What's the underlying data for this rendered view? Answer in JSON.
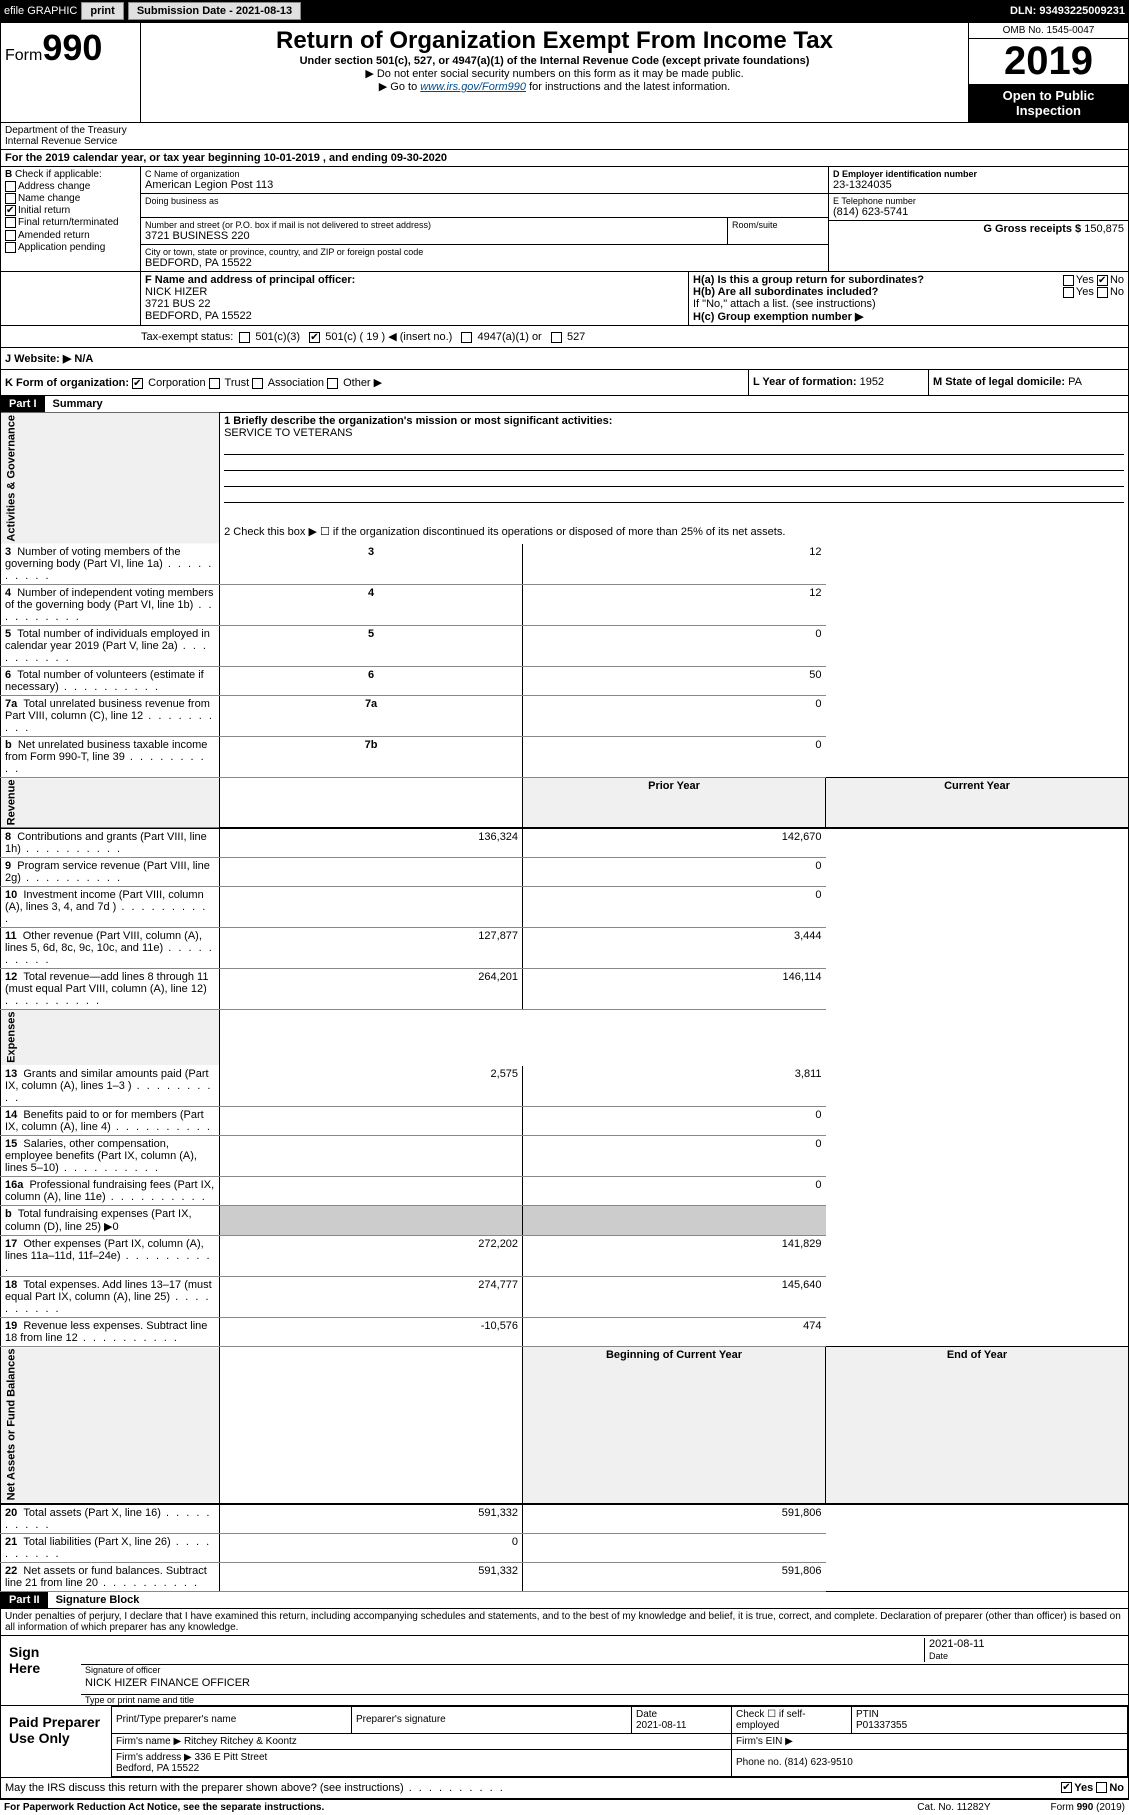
{
  "topbar": {
    "efile": "efile GRAPHIC",
    "print": "print",
    "subdate_label": "Submission Date - 2021-08-13",
    "dln": "DLN: 93493225009231"
  },
  "header": {
    "form": "Form",
    "form_no": "990",
    "dept": "Department of the Treasury\nInternal Revenue Service",
    "title": "Return of Organization Exempt From Income Tax",
    "subtitle": "Under section 501(c), 527, or 4947(a)(1) of the Internal Revenue Code (except private foundations)",
    "note1": "▶ Do not enter social security numbers on this form as it may be made public.",
    "note2_pre": "▶ Go to ",
    "note2_link": "www.irs.gov/Form990",
    "note2_post": " for instructions and the latest information.",
    "omb": "OMB No. 1545-0047",
    "year": "2019",
    "open": "Open to Public Inspection"
  },
  "line_a": "For the 2019 calendar year, or tax year beginning 10-01-2019    , and ending 09-30-2020",
  "box_b": {
    "label": "Check if applicable:",
    "items": [
      "Address change",
      "Name change",
      "Initial return",
      "Final return/terminated",
      "Amended return",
      "Application pending"
    ],
    "checked_idx": 2
  },
  "box_c": {
    "name_label": "C Name of organization",
    "name": "American Legion Post 113",
    "dba_label": "Doing business as",
    "dba": "",
    "addr_label": "Number and street (or P.O. box if mail is not delivered to street address)",
    "room_label": "Room/suite",
    "addr": "3721 BUSINESS 220",
    "city_label": "City or town, state or province, country, and ZIP or foreign postal code",
    "city": "BEDFORD, PA  15522"
  },
  "box_d": {
    "label": "D Employer identification number",
    "val": "23-1324035"
  },
  "box_e": {
    "label": "E Telephone number",
    "val": "(814) 623-5741"
  },
  "box_g": {
    "label": "G Gross receipts $",
    "val": "150,875"
  },
  "box_f": {
    "label": "F  Name and address of principal officer:",
    "name": "NICK HIZER",
    "addr1": "3721 BUS 22",
    "addr2": "BEDFORD, PA  15522"
  },
  "box_h": {
    "ha": "H(a)  Is this a group return for subordinates?",
    "ha_yes": "Yes",
    "ha_no": "No",
    "hb": "H(b)  Are all subordinates included?",
    "hb_note": "If \"No,\" attach a list. (see instructions)",
    "hc": "H(c)  Group exemption number ▶"
  },
  "box_i": {
    "label": "Tax-exempt status:",
    "opts": [
      "501(c)(3)",
      "501(c) ( 19 ) ◀ (insert no.)",
      "4947(a)(1) or",
      "527"
    ],
    "checked_idx": 1
  },
  "box_j": {
    "label": "J   Website: ▶",
    "val": "N/A"
  },
  "box_k": {
    "label": "K Form of organization:",
    "opts": [
      "Corporation",
      "Trust",
      "Association",
      "Other ▶"
    ],
    "checked_idx": 0
  },
  "box_l": {
    "label": "L Year of formation:",
    "val": "1952"
  },
  "box_m": {
    "label": "M State of legal domicile:",
    "val": "PA"
  },
  "part1": {
    "header": "Part I",
    "title": "Summary"
  },
  "summary": {
    "q1_label": "1  Briefly describe the organization's mission or most significant activities:",
    "q1_val": "SERVICE TO VETERANS",
    "q2": "2   Check this box ▶ ☐  if the organization discontinued its operations or disposed of more than 25% of its net assets.",
    "lines_gov": [
      {
        "n": "3",
        "t": "Number of voting members of the governing body (Part VI, line 1a)",
        "r": "3",
        "v": "12"
      },
      {
        "n": "4",
        "t": "Number of independent voting members of the governing body (Part VI, line 1b)",
        "r": "4",
        "v": "12"
      },
      {
        "n": "5",
        "t": "Total number of individuals employed in calendar year 2019 (Part V, line 2a)",
        "r": "5",
        "v": "0"
      },
      {
        "n": "6",
        "t": "Total number of volunteers (estimate if necessary)",
        "r": "6",
        "v": "50"
      },
      {
        "n": "7a",
        "t": "Total unrelated business revenue from Part VIII, column (C), line 12",
        "r": "7a",
        "v": "0"
      },
      {
        "n": "b",
        "t": "Net unrelated business taxable income from Form 990-T, line 39",
        "r": "7b",
        "v": "0"
      }
    ],
    "col_prior": "Prior Year",
    "col_current": "Current Year",
    "revenue": [
      {
        "n": "8",
        "t": "Contributions and grants (Part VIII, line 1h)",
        "p": "136,324",
        "c": "142,670"
      },
      {
        "n": "9",
        "t": "Program service revenue (Part VIII, line 2g)",
        "p": "",
        "c": "0"
      },
      {
        "n": "10",
        "t": "Investment income (Part VIII, column (A), lines 3, 4, and 7d )",
        "p": "",
        "c": "0"
      },
      {
        "n": "11",
        "t": "Other revenue (Part VIII, column (A), lines 5, 6d, 8c, 9c, 10c, and 11e)",
        "p": "127,877",
        "c": "3,444"
      },
      {
        "n": "12",
        "t": "Total revenue—add lines 8 through 11 (must equal Part VIII, column (A), line 12)",
        "p": "264,201",
        "c": "146,114"
      }
    ],
    "expenses": [
      {
        "n": "13",
        "t": "Grants and similar amounts paid (Part IX, column (A), lines 1–3 )",
        "p": "2,575",
        "c": "3,811"
      },
      {
        "n": "14",
        "t": "Benefits paid to or for members (Part IX, column (A), line 4)",
        "p": "",
        "c": "0"
      },
      {
        "n": "15",
        "t": "Salaries, other compensation, employee benefits (Part IX, column (A), lines 5–10)",
        "p": "",
        "c": "0"
      },
      {
        "n": "16a",
        "t": "Professional fundraising fees (Part IX, column (A), line 11e)",
        "p": "",
        "c": "0"
      },
      {
        "n": "b",
        "t": "Total fundraising expenses (Part IX, column (D), line 25) ▶0",
        "p": "shaded",
        "c": "shaded"
      },
      {
        "n": "17",
        "t": "Other expenses (Part IX, column (A), lines 11a–11d, 11f–24e)",
        "p": "272,202",
        "c": "141,829"
      },
      {
        "n": "18",
        "t": "Total expenses. Add lines 13–17 (must equal Part IX, column (A), line 25)",
        "p": "274,777",
        "c": "145,640"
      },
      {
        "n": "19",
        "t": "Revenue less expenses. Subtract line 18 from line 12",
        "p": "-10,576",
        "c": "474"
      }
    ],
    "col_begin": "Beginning of Current Year",
    "col_end": "End of Year",
    "netassets": [
      {
        "n": "20",
        "t": "Total assets (Part X, line 16)",
        "p": "591,332",
        "c": "591,806"
      },
      {
        "n": "21",
        "t": "Total liabilities (Part X, line 26)",
        "p": "0",
        "c": ""
      },
      {
        "n": "22",
        "t": "Net assets or fund balances. Subtract line 21 from line 20",
        "p": "591,332",
        "c": "591,806"
      }
    ],
    "sections": {
      "gov": "Activities & Governance",
      "rev": "Revenue",
      "exp": "Expenses",
      "net": "Net Assets or Fund Balances"
    }
  },
  "part2": {
    "header": "Part II",
    "title": "Signature Block",
    "perjury": "Under penalties of perjury, I declare that I have examined this return, including accompanying schedules and statements, and to the best of my knowledge and belief, it is true, correct, and complete. Declaration of preparer (other than officer) is based on all information of which preparer has any knowledge."
  },
  "sign": {
    "label": "Sign Here",
    "sig_label": "Signature of officer",
    "date": "2021-08-11",
    "date_label": "Date",
    "name": "NICK HIZER  FINANCE OFFICER",
    "name_label": "Type or print name and title"
  },
  "preparer": {
    "label": "Paid Preparer Use Only",
    "print_label": "Print/Type preparer's name",
    "sig_label": "Preparer's signature",
    "date_label": "Date",
    "date": "2021-08-11",
    "check_label": "Check ☐ if self-employed",
    "ptin_label": "PTIN",
    "ptin": "P01337355",
    "firm_name_label": "Firm's name    ▶",
    "firm_name": "Ritchey Ritchey & Koontz",
    "firm_ein_label": "Firm's EIN ▶",
    "firm_addr_label": "Firm's address ▶",
    "firm_addr": "336 E Pitt Street\nBedford, PA  15522",
    "phone_label": "Phone no.",
    "phone": "(814) 623-9510"
  },
  "discuss": {
    "q": "May the IRS discuss this return with the preparer shown above? (see instructions)",
    "yes": "Yes",
    "no": "No"
  },
  "footer": {
    "left": "For Paperwork Reduction Act Notice, see the separate instructions.",
    "mid": "Cat. No. 11282Y",
    "right": "Form 990 (2019)"
  }
}
